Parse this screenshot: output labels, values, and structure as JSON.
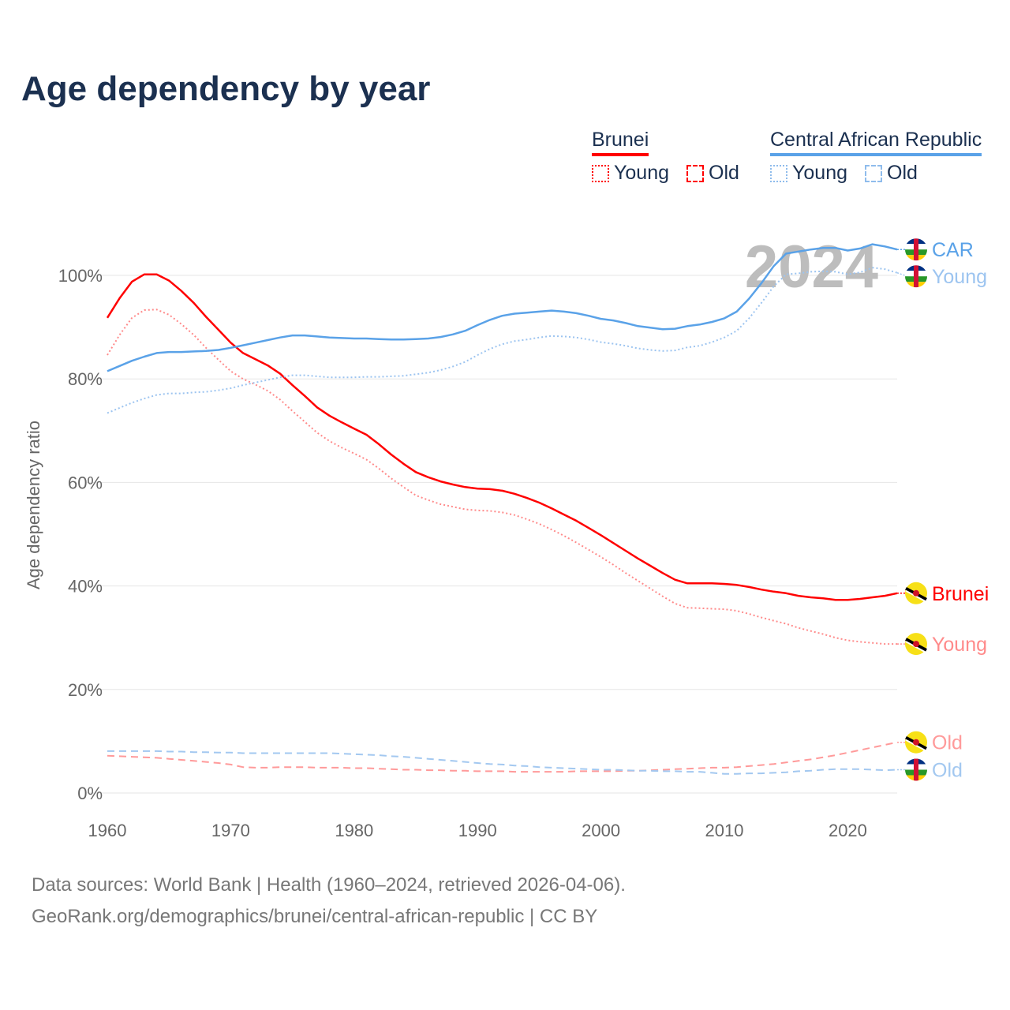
{
  "title": "Age dependency by year",
  "legend": {
    "groups": [
      {
        "name": "Brunei",
        "color": "#ff0000",
        "light": "#ff9a9a",
        "items": [
          "Young",
          "Old"
        ]
      },
      {
        "name": "Central African Republic",
        "color": "#5aa2e8",
        "light": "#a3c8f0",
        "items": [
          "Young",
          "Old"
        ]
      }
    ]
  },
  "footer": {
    "line1": "Data sources: World Bank | Health (1960–2024, retrieved 2026-04-06).",
    "line2": "GeoRank.org/demographics/brunei/central-african-republic | CC BY"
  },
  "chart_data": {
    "type": "line",
    "title": "Age dependency by year",
    "xlabel": "",
    "ylabel": "Age dependency ratio",
    "xlim": [
      1960,
      2024
    ],
    "ylim": [
      0,
      100
    ],
    "x_ticks": [
      "1960",
      "1970",
      "1980",
      "1990",
      "2000",
      "2010",
      "2020"
    ],
    "y_ticks": [
      "0%",
      "20%",
      "40%",
      "60%",
      "80%",
      "100%"
    ],
    "year_label": "2024",
    "x_start": 1960,
    "series": [
      {
        "name": "Brunei",
        "end_label": "Brunei",
        "style": "solid",
        "color": "#ff0000",
        "flag": "brunei",
        "values": [
          91.8,
          95.6,
          98.8,
          100.2,
          100.2,
          99.0,
          97.0,
          94.7,
          92.0,
          89.5,
          87.0,
          85.0,
          83.8,
          82.6,
          81.0,
          78.8,
          76.7,
          74.5,
          72.9,
          71.6,
          70.4,
          69.2,
          67.4,
          65.4,
          63.6,
          62.0,
          61.0,
          60.2,
          59.6,
          59.1,
          58.8,
          58.7,
          58.4,
          57.8,
          57.0,
          56.1,
          55.0,
          53.8,
          52.6,
          51.2,
          49.8,
          48.3,
          46.8,
          45.3,
          43.9,
          42.5,
          41.2,
          40.5,
          40.5,
          40.5,
          40.4,
          40.2,
          39.8,
          39.3,
          38.9,
          38.6,
          38.1,
          37.8,
          37.6,
          37.3,
          37.3,
          37.5,
          37.8,
          38.1,
          38.6
        ]
      },
      {
        "name": "Brunei Young",
        "end_label": "Young",
        "style": "dotted",
        "color": "#ff8a8a",
        "flag": "brunei",
        "values": [
          84.6,
          88.5,
          91.8,
          93.3,
          93.4,
          92.4,
          90.6,
          88.5,
          86.0,
          83.7,
          81.5,
          80.0,
          78.9,
          77.7,
          76.0,
          73.8,
          71.7,
          69.6,
          68.0,
          66.7,
          65.6,
          64.4,
          62.7,
          60.8,
          59.1,
          57.5,
          56.6,
          55.8,
          55.3,
          54.8,
          54.6,
          54.5,
          54.2,
          53.7,
          52.9,
          52.0,
          50.9,
          49.7,
          48.4,
          47.0,
          45.6,
          44.1,
          42.5,
          41.0,
          39.5,
          38.0,
          36.6,
          35.8,
          35.7,
          35.6,
          35.5,
          35.2,
          34.6,
          33.9,
          33.3,
          32.7,
          31.9,
          31.3,
          30.7,
          30.0,
          29.5,
          29.2,
          29.0,
          28.8,
          28.8
        ]
      },
      {
        "name": "Brunei Old",
        "end_label": "Old",
        "style": "dashed",
        "color": "#ff9a9a",
        "flag": "brunei",
        "values": [
          7.2,
          7.1,
          7.0,
          6.9,
          6.8,
          6.6,
          6.4,
          6.2,
          6.0,
          5.8,
          5.5,
          5.0,
          4.9,
          4.9,
          5.0,
          5.0,
          5.0,
          4.9,
          4.9,
          4.9,
          4.8,
          4.8,
          4.7,
          4.6,
          4.5,
          4.5,
          4.4,
          4.4,
          4.3,
          4.3,
          4.2,
          4.2,
          4.2,
          4.1,
          4.1,
          4.1,
          4.1,
          4.1,
          4.2,
          4.2,
          4.2,
          4.2,
          4.3,
          4.3,
          4.4,
          4.5,
          4.6,
          4.7,
          4.8,
          4.9,
          4.9,
          5.0,
          5.2,
          5.4,
          5.6,
          5.9,
          6.2,
          6.5,
          6.9,
          7.3,
          7.8,
          8.3,
          8.8,
          9.3,
          9.8
        ]
      },
      {
        "name": "Central African Republic",
        "end_label": "CAR",
        "style": "solid",
        "color": "#5aa2e8",
        "flag": "car",
        "values": [
          81.5,
          82.5,
          83.5,
          84.3,
          85.0,
          85.2,
          85.2,
          85.3,
          85.4,
          85.6,
          86.0,
          86.5,
          87.0,
          87.5,
          88.0,
          88.4,
          88.4,
          88.2,
          88.0,
          87.9,
          87.8,
          87.8,
          87.7,
          87.6,
          87.6,
          87.7,
          87.8,
          88.1,
          88.6,
          89.3,
          90.4,
          91.4,
          92.2,
          92.6,
          92.8,
          93.0,
          93.2,
          93.0,
          92.7,
          92.2,
          91.6,
          91.3,
          90.8,
          90.2,
          89.9,
          89.6,
          89.7,
          90.2,
          90.5,
          91.0,
          91.7,
          93.0,
          95.5,
          98.5,
          101.8,
          104.2,
          104.6,
          105.0,
          105.3,
          105.3,
          104.8,
          105.2,
          106.0,
          105.6,
          105.0
        ]
      },
      {
        "name": "Central African Republic Young",
        "end_label": "Young",
        "style": "dotted",
        "color": "#9cc4f0",
        "flag": "car",
        "values": [
          73.4,
          74.4,
          75.4,
          76.2,
          76.9,
          77.2,
          77.2,
          77.4,
          77.5,
          77.8,
          78.2,
          78.8,
          79.3,
          79.8,
          80.3,
          80.7,
          80.7,
          80.5,
          80.3,
          80.3,
          80.3,
          80.4,
          80.4,
          80.5,
          80.6,
          80.9,
          81.2,
          81.7,
          82.4,
          83.3,
          84.6,
          85.8,
          86.7,
          87.3,
          87.6,
          88.0,
          88.3,
          88.2,
          88.0,
          87.6,
          87.1,
          86.8,
          86.4,
          85.9,
          85.6,
          85.4,
          85.5,
          86.1,
          86.4,
          87.1,
          88.0,
          89.3,
          91.7,
          94.7,
          97.9,
          100.2,
          100.4,
          100.7,
          100.8,
          100.7,
          100.2,
          100.6,
          101.5,
          101.2,
          100.5
        ]
      },
      {
        "name": "Central African Republic Old",
        "end_label": "Old",
        "style": "dashed",
        "color": "#a3c8f0",
        "flag": "car",
        "values": [
          8.1,
          8.1,
          8.1,
          8.1,
          8.1,
          8.0,
          8.0,
          7.9,
          7.9,
          7.8,
          7.8,
          7.7,
          7.7,
          7.7,
          7.7,
          7.7,
          7.7,
          7.7,
          7.7,
          7.6,
          7.5,
          7.4,
          7.3,
          7.1,
          7.0,
          6.8,
          6.6,
          6.4,
          6.2,
          6.0,
          5.8,
          5.6,
          5.5,
          5.3,
          5.2,
          5.0,
          4.9,
          4.8,
          4.7,
          4.6,
          4.5,
          4.5,
          4.4,
          4.3,
          4.3,
          4.2,
          4.2,
          4.1,
          4.1,
          3.9,
          3.7,
          3.7,
          3.8,
          3.8,
          3.9,
          4.0,
          4.2,
          4.3,
          4.5,
          4.6,
          4.6,
          4.6,
          4.5,
          4.4,
          4.5
        ]
      }
    ]
  }
}
